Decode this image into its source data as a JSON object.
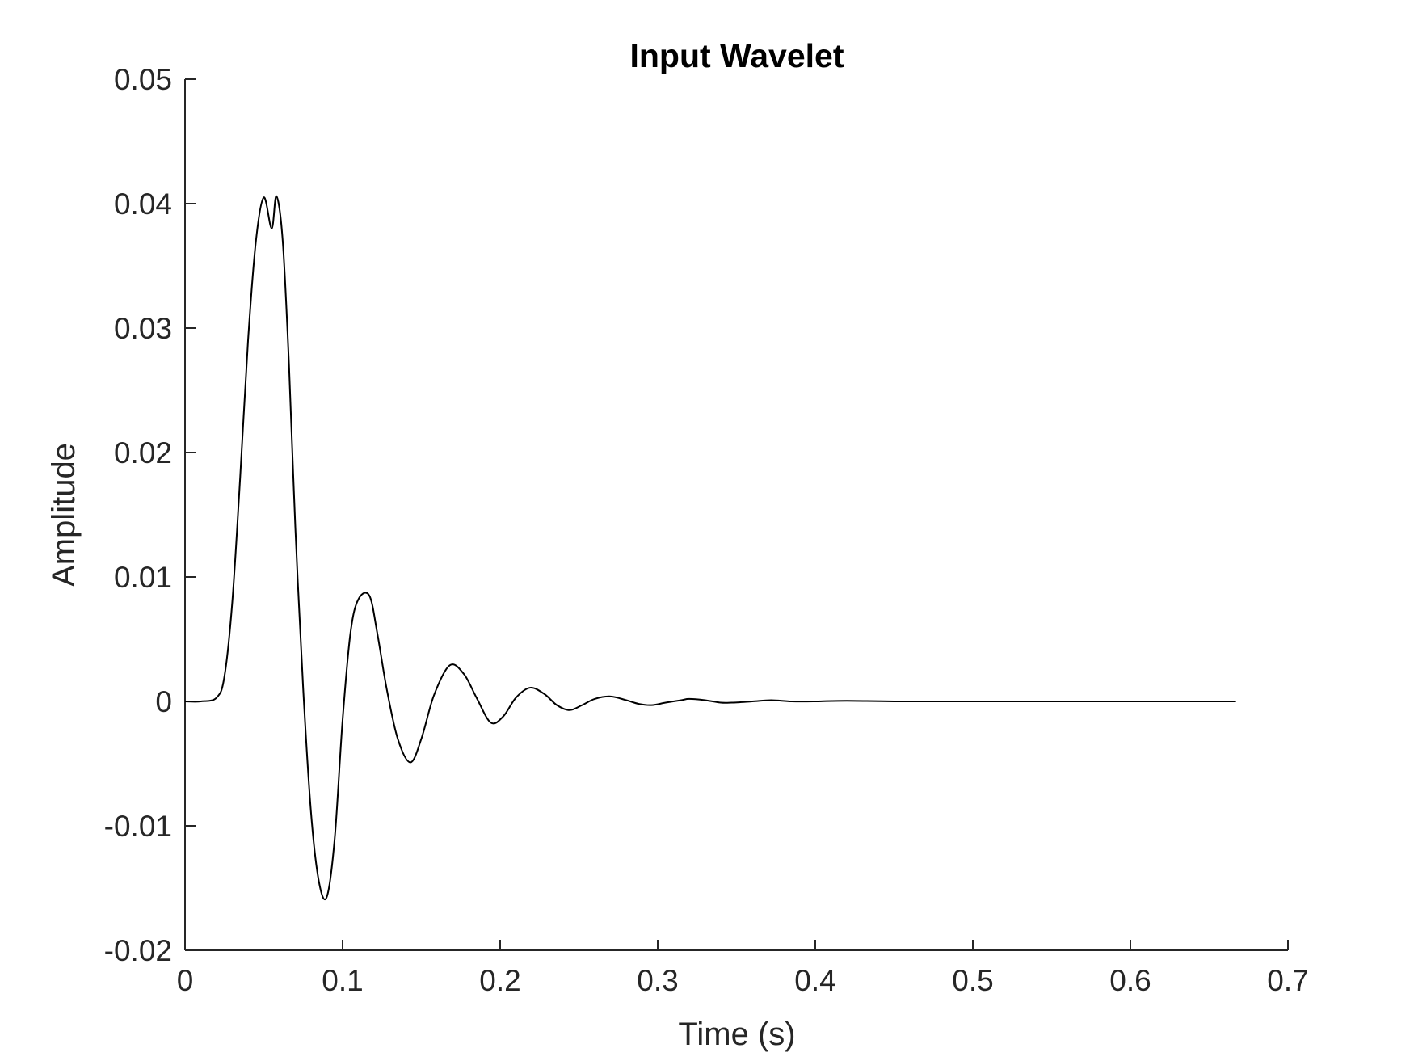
{
  "chart_data": {
    "type": "line",
    "title": "Input Wavelet",
    "xlabel": "Time (s)",
    "ylabel": "Amplitude",
    "xlim": [
      0,
      0.7
    ],
    "ylim": [
      -0.02,
      0.05
    ],
    "xticks": [
      0,
      0.1,
      0.2,
      0.3,
      0.4,
      0.5,
      0.6,
      0.7
    ],
    "xtick_labels": [
      "0",
      "0.1",
      "0.2",
      "0.3",
      "0.4",
      "0.5",
      "0.6",
      "0.7"
    ],
    "yticks": [
      -0.02,
      -0.01,
      0,
      0.01,
      0.02,
      0.03,
      0.04,
      0.05
    ],
    "ytick_labels": [
      "-0.02",
      "-0.01",
      "0",
      "0.01",
      "0.02",
      "0.03",
      "0.04",
      "0.05"
    ],
    "grid": false,
    "line_color": "#000000",
    "series": [
      {
        "x": [
          0,
          0.01,
          0.02,
          0.025,
          0.03,
          0.035,
          0.04,
          0.045,
          0.05,
          0.055,
          0.058,
          0.062,
          0.066,
          0.07,
          0.075,
          0.08,
          0.085,
          0.09,
          0.095,
          0.1,
          0.105,
          0.11,
          0.117,
          0.122,
          0.128,
          0.135,
          0.143,
          0.15,
          0.158,
          0.168,
          0.177,
          0.185,
          0.194,
          0.202,
          0.21,
          0.219,
          0.228,
          0.236,
          0.244,
          0.252,
          0.26,
          0.27,
          0.28,
          0.288,
          0.296,
          0.305,
          0.315,
          0.32,
          0.33,
          0.34,
          0.347,
          0.36,
          0.372,
          0.385,
          0.4,
          0.42,
          0.45,
          0.5,
          0.55,
          0.6,
          0.667
        ],
        "y": [
          0,
          0,
          0.0003,
          0.002,
          0.008,
          0.018,
          0.029,
          0.037,
          0.0405,
          0.038,
          0.0406,
          0.037,
          0.027,
          0.014,
          0.001,
          -0.009,
          -0.0145,
          -0.0157,
          -0.011,
          -0.0015,
          0.0055,
          0.0082,
          0.0085,
          0.0055,
          0.001,
          -0.003,
          -0.0049,
          -0.003,
          0.0005,
          0.0029,
          0.0022,
          0.0003,
          -0.0017,
          -0.0012,
          0.0003,
          0.0011,
          0.0006,
          -0.0003,
          -0.0007,
          -0.0003,
          0.0002,
          0.0004,
          0.0001,
          -0.0002,
          -0.0003,
          -0.0001,
          0.0001,
          0.0002,
          0.0001,
          -0.0001,
          -0.0001,
          0,
          0.0001,
          0,
          0,
          5e-05,
          0,
          0,
          0,
          0,
          0
        ]
      }
    ]
  }
}
